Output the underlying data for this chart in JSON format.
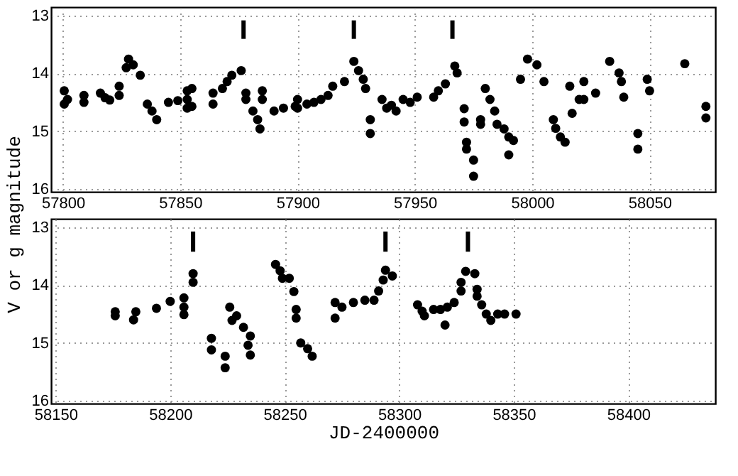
{
  "chart_data": [
    {
      "type": "scatter",
      "ylabel": "V or g magnitude",
      "xlim": [
        57795,
        58078
      ],
      "ylim": [
        16.05,
        12.85
      ],
      "xticks": [
        57800,
        57850,
        57900,
        57950,
        58000,
        58050
      ],
      "yticks": [
        13,
        14,
        15,
        16
      ],
      "grid": true,
      "marker": "circle",
      "series": [
        {
          "color": "#000000",
          "x": [
            57800.6,
            57800.6,
            57802,
            57809,
            57809,
            57816,
            57818,
            57820,
            57824,
            57824,
            57827,
            57828,
            57830,
            57833,
            57836,
            57838,
            57840,
            57845,
            57849,
            57853,
            57853,
            57853,
            57855,
            57855,
            57864,
            57864,
            57868,
            57870,
            57872,
            57876,
            57878,
            57878,
            57881,
            57883,
            57884,
            57885,
            57885,
            57890,
            57894,
            57899,
            57900,
            57900,
            57904,
            57907,
            57910,
            57913,
            57915,
            57920,
            57924,
            57926,
            57928,
            57929,
            57931,
            57931,
            57936,
            57938,
            57940,
            57942,
            57945,
            57948,
            57951,
            57958,
            57960,
            57963,
            57967,
            57968,
            57971,
            57971,
            57972,
            57972,
            57975,
            57975,
            57978,
            57978,
            57980,
            57982,
            57984,
            57985,
            57988,
            57990,
            57992,
            57990,
            57995,
            57998,
            58002,
            58005,
            58009,
            58010,
            58012,
            58014,
            58016,
            58017,
            58020,
            58022,
            58022,
            58027,
            58033,
            58037,
            58038,
            58039,
            58045,
            58045,
            58049,
            58050,
            58065,
            58074,
            58074
          ],
          "values": [
            14.3,
            14.53,
            14.45,
            14.38,
            14.5,
            14.34,
            14.42,
            14.46,
            14.22,
            14.38,
            13.9,
            13.75,
            13.85,
            14.03,
            14.53,
            14.65,
            14.8,
            14.5,
            14.47,
            14.45,
            14.3,
            14.6,
            14.26,
            14.57,
            14.34,
            14.53,
            14.26,
            14.14,
            14.03,
            13.95,
            14.34,
            14.45,
            14.65,
            14.8,
            14.96,
            14.3,
            14.45,
            14.65,
            14.6,
            14.57,
            14.45,
            14.6,
            14.53,
            14.5,
            14.45,
            14.38,
            14.22,
            14.14,
            13.79,
            13.95,
            14.1,
            14.26,
            14.8,
            15.04,
            14.45,
            14.6,
            14.55,
            14.65,
            14.45,
            14.5,
            14.41,
            14.41,
            14.3,
            14.18,
            13.87,
            13.99,
            14.61,
            14.84,
            15.19,
            15.31,
            15.5,
            15.78,
            14.8,
            14.88,
            14.26,
            14.45,
            14.65,
            14.88,
            14.96,
            15.1,
            15.16,
            15.41,
            14.1,
            13.75,
            13.85,
            14.14,
            14.8,
            14.95,
            15.1,
            15.19,
            14.22,
            14.69,
            14.45,
            14.14,
            14.45,
            14.34,
            13.79,
            13.99,
            14.14,
            14.41,
            15.04,
            15.31,
            14.1,
            14.3,
            13.83,
            14.57,
            14.77
          ]
        },
        {
          "type": "bar",
          "color": "#000000",
          "x": [
            57877,
            57924,
            57966
          ],
          "base": [
            13.08,
            13.08,
            13.08
          ],
          "values": [
            0.32,
            0.32,
            0.32
          ]
        }
      ]
    },
    {
      "type": "scatter",
      "xlabel": "JD-2400000",
      "xlim": [
        58148,
        58438
      ],
      "ylim": [
        16.05,
        12.85
      ],
      "xticks": [
        58150,
        58200,
        58250,
        58300,
        58350,
        58400
      ],
      "yticks": [
        13,
        14,
        15,
        16
      ],
      "grid": true,
      "marker": "circle",
      "series": [
        {
          "color": "#000000",
          "x": [
            58176,
            58176,
            58184,
            58185,
            58194,
            58200,
            58206,
            58206,
            58206,
            58210,
            58210,
            58218,
            58218,
            58224,
            58224,
            58226,
            58227,
            58229,
            58232,
            58235,
            58234,
            58235,
            58246,
            58248,
            58249,
            58252,
            58254,
            58255,
            58255,
            58257,
            58260,
            58262,
            58272,
            58272,
            58275,
            58280,
            58285,
            58289,
            58291,
            58293,
            58294,
            58297,
            58308,
            58310,
            58311,
            58315,
            58318,
            58320,
            58321,
            58324,
            58327,
            58327,
            58329,
            58333,
            58334,
            58334,
            58336,
            58338,
            58340,
            58343,
            58346,
            58351
          ],
          "values": [
            14.46,
            14.53,
            14.6,
            14.46,
            14.4,
            14.28,
            14.22,
            14.38,
            14.51,
            13.8,
            13.95,
            14.92,
            15.12,
            15.23,
            15.43,
            14.38,
            14.61,
            14.53,
            14.73,
            14.88,
            15.04,
            15.21,
            13.64,
            13.75,
            13.88,
            13.88,
            14.11,
            14.42,
            14.57,
            15.0,
            15.1,
            15.23,
            14.3,
            14.57,
            14.38,
            14.3,
            14.26,
            14.26,
            14.1,
            13.91,
            13.74,
            13.84,
            14.34,
            14.45,
            14.53,
            14.42,
            14.42,
            14.69,
            14.38,
            14.3,
            14.1,
            13.95,
            13.76,
            13.8,
            14.07,
            14.19,
            14.34,
            14.5,
            14.61,
            14.5,
            14.5,
            14.5
          ]
        },
        {
          "type": "bar",
          "color": "#000000",
          "x": [
            58210,
            58294,
            58330
          ],
          "base": [
            13.07,
            13.07,
            13.07
          ],
          "values": [
            0.35,
            0.35,
            0.35
          ]
        }
      ]
    }
  ]
}
